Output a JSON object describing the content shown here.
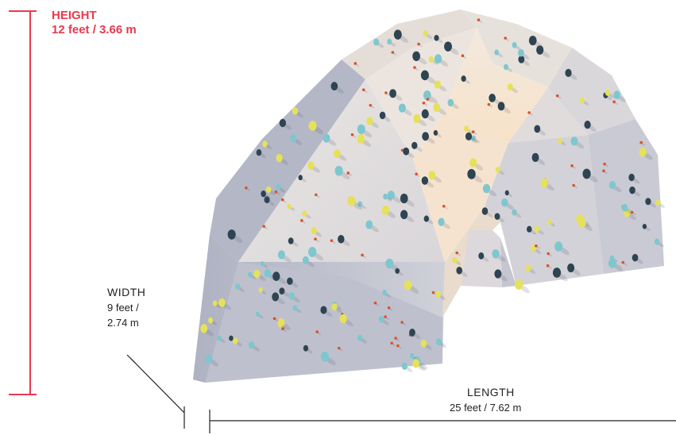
{
  "height": {
    "title": "HEIGHT",
    "value": "12 feet / 3.66 m",
    "color": "#e8394e"
  },
  "width": {
    "title": "WIDTH",
    "value_line1": "9 feet /",
    "value_line2": "2.74 m"
  },
  "length": {
    "title": "LENGTH",
    "value": "25 feet / 7.62 m"
  },
  "colors": {
    "wall_shadow": "#b9bcc9",
    "wall_mid": "#d8d6da",
    "wall_light": "#ece6e0",
    "wall_warm": "#f3e6d6",
    "hold_dark": "#2f4452",
    "hold_teal": "#7fc7cf",
    "hold_yellow": "#e6e15a",
    "hold_red": "#d9532a",
    "line": "#222222"
  }
}
